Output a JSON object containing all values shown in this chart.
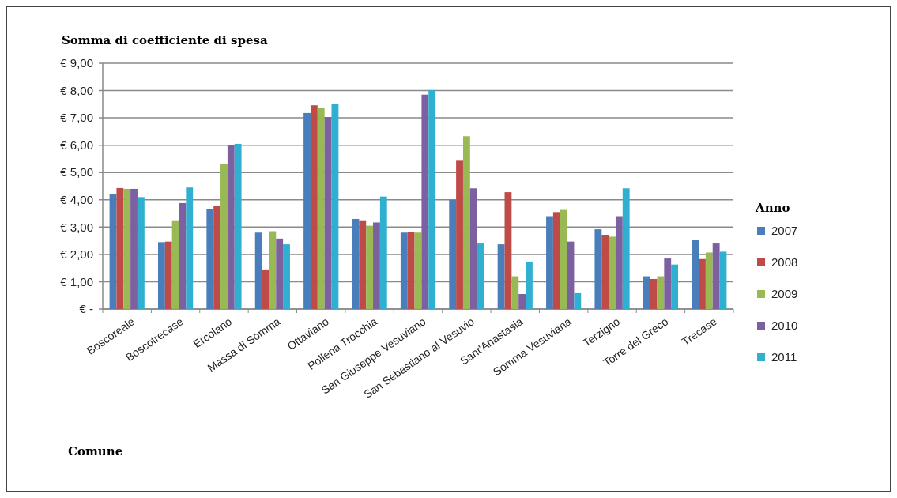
{
  "chart_data": {
    "type": "bar",
    "title": "Somma di coefficiente di spesa",
    "xlabel": "Comune",
    "legend_title": "Anno",
    "categories": [
      "Boscoreale",
      "Boscotrecase",
      "Ercolano",
      "Massa di Somma",
      "Ottaviano",
      "Pollena Trocchia",
      "San Giuseppe Vesuviano",
      "San Sebastiano al Vesuvio",
      "Sant'Anastasia",
      "Somma Vesuviana",
      "Terzigno",
      "Torre del Greco",
      "Trecase"
    ],
    "series": [
      {
        "name": "2007",
        "color": "#4a7ebb",
        "values": [
          4.2,
          2.45,
          3.67,
          2.8,
          7.18,
          3.3,
          2.8,
          4.0,
          2.37,
          3.4,
          2.92,
          1.2,
          2.52
        ]
      },
      {
        "name": "2008",
        "color": "#be4b48",
        "values": [
          4.43,
          2.47,
          3.77,
          1.45,
          7.46,
          3.25,
          2.82,
          5.43,
          4.28,
          3.55,
          2.72,
          1.1,
          1.83
        ]
      },
      {
        "name": "2009",
        "color": "#98b954",
        "values": [
          4.4,
          3.25,
          5.3,
          2.85,
          7.38,
          3.05,
          2.8,
          6.33,
          1.2,
          3.63,
          2.65,
          1.2,
          2.07
        ]
      },
      {
        "name": "2010",
        "color": "#7d60a0",
        "values": [
          4.4,
          3.88,
          6.0,
          2.58,
          7.03,
          3.17,
          7.85,
          4.42,
          0.55,
          2.47,
          3.4,
          1.85,
          2.4
        ]
      },
      {
        "name": "2011",
        "color": "#2fb0d1",
        "values": [
          4.1,
          4.45,
          6.05,
          2.37,
          7.5,
          4.12,
          8.02,
          2.4,
          1.74,
          0.58,
          4.42,
          1.63,
          2.1
        ]
      }
    ],
    "ylim": [
      0,
      9
    ],
    "yticks": [
      {
        "value": 0,
        "label": "€ -"
      },
      {
        "value": 1,
        "label": "€ 1,00"
      },
      {
        "value": 2,
        "label": "€ 2,00"
      },
      {
        "value": 3,
        "label": "€ 3,00"
      },
      {
        "value": 4,
        "label": "€ 4,00"
      },
      {
        "value": 5,
        "label": "€ 5,00"
      },
      {
        "value": 6,
        "label": "€ 6,00"
      },
      {
        "value": 7,
        "label": "€ 7,00"
      },
      {
        "value": 8,
        "label": "€ 8,00"
      },
      {
        "value": 9,
        "label": "€ 9,00"
      }
    ],
    "grid": "y",
    "legend": "right"
  }
}
